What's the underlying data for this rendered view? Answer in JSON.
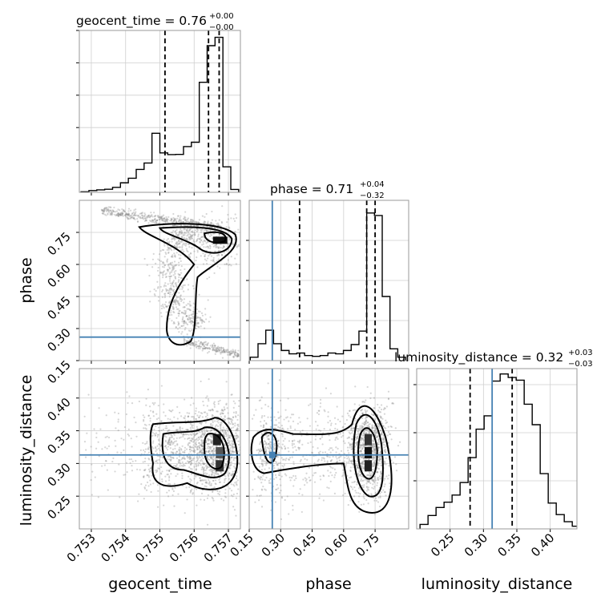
{
  "chart_data": {
    "type": "corner",
    "parameters": [
      "geocent_time",
      "phase",
      "luminosity_distance"
    ],
    "truth_color": "#4682b4",
    "truths": {
      "geocent_time": null,
      "phase": 0.26,
      "luminosity_distance": 0.313
    },
    "panels": {
      "geocent_time_hist": {
        "title_main": "geocent_time = 0.76",
        "title_sup": "+0.00",
        "title_sub": "−0.00",
        "xlim": [
          0.75265,
          0.75735
        ],
        "quantiles": [
          0.75515,
          0.75642,
          0.75673
        ],
        "bin_edges": [
          0.7527,
          0.75293,
          0.75316,
          0.75339,
          0.75362,
          0.75385,
          0.75408,
          0.75431,
          0.75454,
          0.75477,
          0.755,
          0.75523,
          0.75546,
          0.75569,
          0.75592,
          0.75615,
          0.75638,
          0.75661,
          0.75684,
          0.75707,
          0.7573
        ],
        "counts": [
          0.3,
          0.9,
          1.3,
          1.6,
          2.6,
          5.0,
          7.4,
          12.0,
          15.4,
          31.0,
          20.7,
          19.8,
          19.9,
          24.0,
          26.3,
          57.8,
          77.0,
          81.4,
          13.4,
          1.5
        ],
        "ymax": 85
      },
      "phase_hist": {
        "title_main": "phase = 0.71",
        "title_sup": "+0.04",
        "title_sub": "−0.32",
        "xlim": [
          0.15,
          0.91
        ],
        "quantiles": [
          0.39,
          0.71,
          0.75
        ],
        "bin_edges": [
          0.155,
          0.192,
          0.229,
          0.266,
          0.303,
          0.34,
          0.377,
          0.414,
          0.451,
          0.488,
          0.525,
          0.562,
          0.599,
          0.636,
          0.673,
          0.71,
          0.747,
          0.784,
          0.821,
          0.858,
          0.895
        ],
        "counts": [
          0.4,
          2.0,
          3.6,
          2.0,
          1.2,
          0.8,
          0.9,
          0.6,
          0.5,
          0.6,
          0.9,
          0.8,
          1.2,
          1.9,
          3.5,
          17.5,
          17.2,
          7.6,
          1.4,
          0.4
        ],
        "ymax": 19
      },
      "luminosity_distance_hist": {
        "title_main": "luminosity_distance = 0.32",
        "title_sup": "+0.03",
        "title_sub": "−0.03",
        "xlim": [
          0.2,
          0.44
        ],
        "quantiles": [
          0.28,
          0.343
        ],
        "bin_edges": [
          0.205,
          0.217,
          0.229,
          0.241,
          0.253,
          0.265,
          0.277,
          0.289,
          0.301,
          0.313,
          0.325,
          0.337,
          0.349,
          0.361,
          0.373,
          0.385,
          0.397,
          0.409,
          0.421,
          0.433,
          0.445
        ],
        "counts": [
          0.5,
          1.5,
          2.4,
          3.0,
          3.8,
          5.2,
          8.0,
          11.2,
          12.7,
          16.6,
          17.4,
          17.0,
          16.7,
          14.0,
          11.7,
          6.2,
          2.9,
          1.6,
          0.8,
          0.3
        ],
        "ymax": 18
      },
      "phase_vs_geocent_time": {
        "xlim": [
          0.75265,
          0.75735
        ],
        "ylim": [
          0.15,
          0.9
        ],
        "yticks": [
          0.15,
          0.3,
          0.45,
          0.6,
          0.75
        ]
      },
      "luminosity_distance_vs_geocent_time": {
        "xlim": [
          0.75265,
          0.75735
        ],
        "ylim": [
          0.2,
          0.445
        ],
        "xticks": [
          0.753,
          0.754,
          0.755,
          0.756,
          0.757
        ],
        "yticks": [
          0.25,
          0.3,
          0.35,
          0.4
        ]
      },
      "luminosity_distance_vs_phase": {
        "xlim": [
          0.15,
          0.91
        ],
        "ylim": [
          0.2,
          0.445
        ],
        "xticks": [
          0.15,
          0.3,
          0.45,
          0.6,
          0.75
        ]
      }
    },
    "tick_labels": {
      "geocent_time": [
        "0.753",
        "0.754",
        "0.755",
        "0.756",
        "0.757"
      ],
      "phase_x": [
        "0.15",
        "0.30",
        "0.45",
        "0.60",
        "0.75"
      ],
      "phase_y": [
        "0.15",
        "0.30",
        "0.45",
        "0.60",
        "0.75"
      ],
      "luminosity_distance_x": [
        "0.25",
        "0.30",
        "0.35",
        "0.40"
      ],
      "luminosity_distance_y": [
        "0.25",
        "0.30",
        "0.35",
        "0.40"
      ]
    },
    "axis_labels": {
      "x_col1": "geocent_time",
      "x_col2": "phase",
      "x_col3": "luminosity_distance",
      "y_row2": "phase",
      "y_row3": "luminosity_distance"
    }
  }
}
